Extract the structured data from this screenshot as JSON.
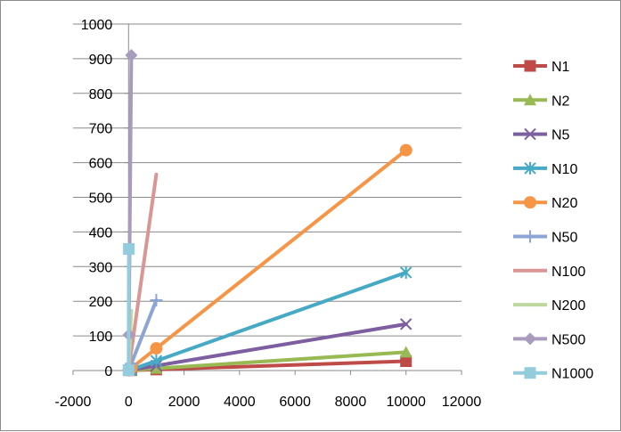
{
  "chart_data": {
    "type": "scatter",
    "title": "",
    "xlabel": "",
    "ylabel": "",
    "xlim": [
      -2000,
      12000
    ],
    "ylim": [
      0,
      1000
    ],
    "x_ticks": [
      -2000,
      0,
      2000,
      4000,
      6000,
      8000,
      10000,
      12000
    ],
    "y_ticks": [
      0,
      100,
      200,
      300,
      400,
      500,
      600,
      700,
      800,
      900,
      1000
    ],
    "x_tick_labels": [
      "-2000",
      "0",
      "2000",
      "4000",
      "6000",
      "8000",
      "10000",
      "12000"
    ],
    "y_tick_labels": [
      "0",
      "100",
      "200",
      "300",
      "400",
      "500",
      "600",
      "700",
      "800",
      "900",
      "1000"
    ],
    "grid": "horizontal",
    "legend_position": "right",
    "series": [
      {
        "name": "N1",
        "color": "#be4b48",
        "marker": "square",
        "points": [
          [
            10,
            1
          ],
          [
            100,
            1
          ],
          [
            1000,
            3
          ],
          [
            10000,
            27
          ]
        ]
      },
      {
        "name": "N2",
        "color": "#98b954",
        "marker": "triangle",
        "points": [
          [
            10,
            1
          ],
          [
            100,
            1
          ],
          [
            1000,
            6
          ],
          [
            10000,
            53
          ]
        ]
      },
      {
        "name": "N5",
        "color": "#7d5fa0",
        "marker": "x",
        "points": [
          [
            10,
            1
          ],
          [
            100,
            2
          ],
          [
            1000,
            14
          ],
          [
            10000,
            134
          ]
        ]
      },
      {
        "name": "N10",
        "color": "#46aac5",
        "marker": "asterisk",
        "points": [
          [
            10,
            1
          ],
          [
            100,
            3
          ],
          [
            1000,
            28
          ],
          [
            10000,
            283
          ]
        ]
      },
      {
        "name": "N20",
        "color": "#f69546",
        "marker": "circle",
        "points": [
          [
            10,
            1
          ],
          [
            100,
            7
          ],
          [
            1000,
            64
          ],
          [
            10000,
            636
          ]
        ]
      },
      {
        "name": "N50",
        "color": "#8ca4d6",
        "marker": "plus",
        "points": [
          [
            10,
            2
          ],
          [
            100,
            20
          ],
          [
            1000,
            203
          ]
        ]
      },
      {
        "name": "N100",
        "color": "#da9695",
        "marker": "dash",
        "points": [
          [
            10,
            6
          ],
          [
            100,
            57
          ],
          [
            1000,
            566
          ]
        ]
      },
      {
        "name": "N200",
        "color": "#bfd89f",
        "marker": "dash",
        "points": [
          [
            10,
            17
          ],
          [
            100,
            173
          ]
        ]
      },
      {
        "name": "N500",
        "color": "#a99bbd",
        "marker": "diamond",
        "points": [
          [
            10,
            103
          ],
          [
            100,
            910
          ]
        ]
      },
      {
        "name": "N1000",
        "color": "#93cddd",
        "marker": "square",
        "points": [
          [
            1,
            1
          ],
          [
            10,
            351
          ]
        ]
      }
    ]
  }
}
